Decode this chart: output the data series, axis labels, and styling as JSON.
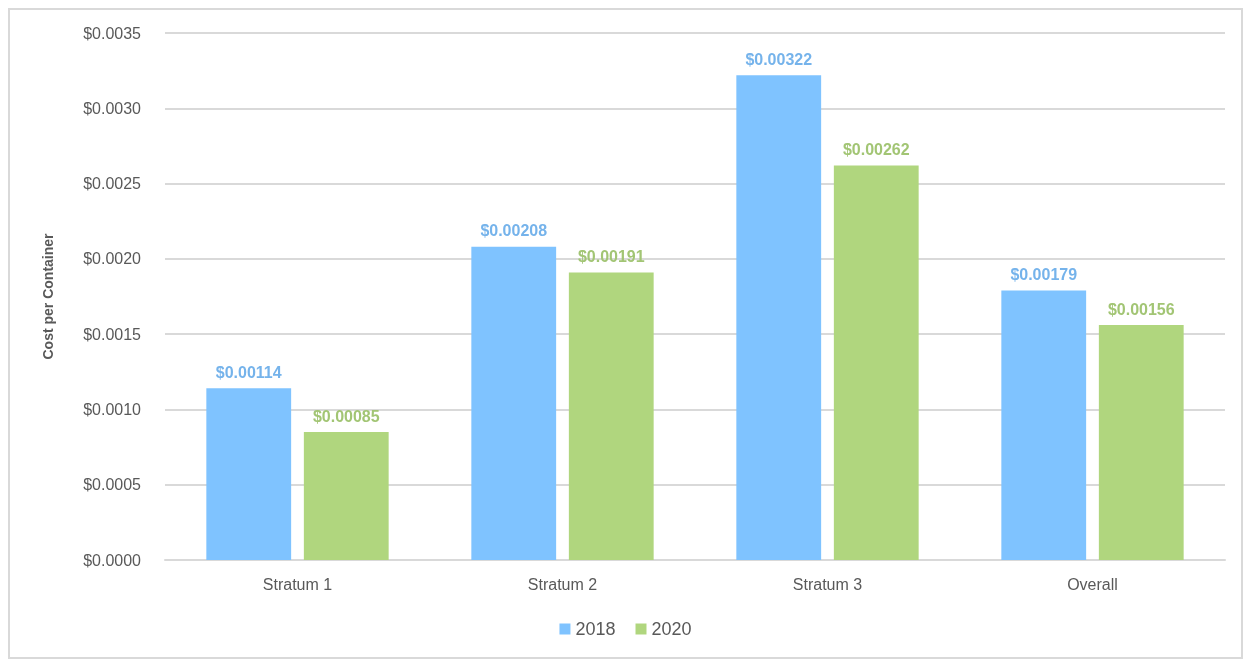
{
  "chart_data": {
    "type": "bar",
    "ylabel": "Cost per Container",
    "categories": [
      "Stratum 1",
      "Stratum 2",
      "Stratum 3",
      "Overall"
    ],
    "series": [
      {
        "name": "2018",
        "color": "#7fc3ff",
        "values": [
          0.00114,
          0.00208,
          0.00322,
          0.00179
        ],
        "value_labels": [
          "$0.00114",
          "$0.00208",
          "$0.00322",
          "$0.00179"
        ]
      },
      {
        "name": "2020",
        "color": "#b0d67e",
        "values": [
          0.00085,
          0.00191,
          0.00262,
          0.00156
        ],
        "value_labels": [
          "$0.00085",
          "$0.00191",
          "$0.00262",
          "$0.00156"
        ]
      }
    ],
    "ylim": [
      0,
      0.0035
    ],
    "yticks": [
      {
        "value": 0,
        "label": "$0.0000"
      },
      {
        "value": 0.0005,
        "label": "$0.0005"
      },
      {
        "value": 0.001,
        "label": "$0.0010"
      },
      {
        "value": 0.0015,
        "label": "$0.0015"
      },
      {
        "value": 0.002,
        "label": "$0.0020"
      },
      {
        "value": 0.0025,
        "label": "$0.0025"
      },
      {
        "value": 0.003,
        "label": "$0.0030"
      },
      {
        "value": 0.0035,
        "label": "$0.0035"
      }
    ],
    "grid": "y",
    "legend": "bottom"
  }
}
